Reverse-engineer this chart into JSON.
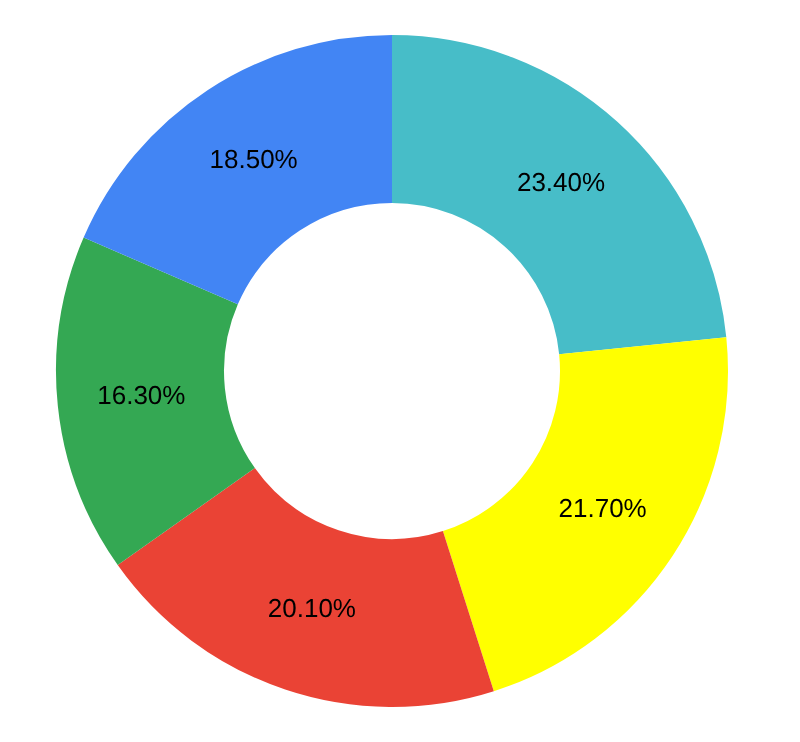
{
  "chart_data": {
    "type": "donut",
    "categories": [
      null,
      null,
      null,
      null,
      null
    ],
    "values": [
      23.4,
      21.7,
      20.1,
      16.3,
      18.5
    ],
    "colors": [
      "#47bdc8",
      "#ffff00",
      "#ea4335",
      "#34a853",
      "#4285f4"
    ],
    "value_labels": [
      "23.40%",
      "21.70%",
      "20.10%",
      "16.30%",
      "18.50%"
    ],
    "legend": false
  }
}
